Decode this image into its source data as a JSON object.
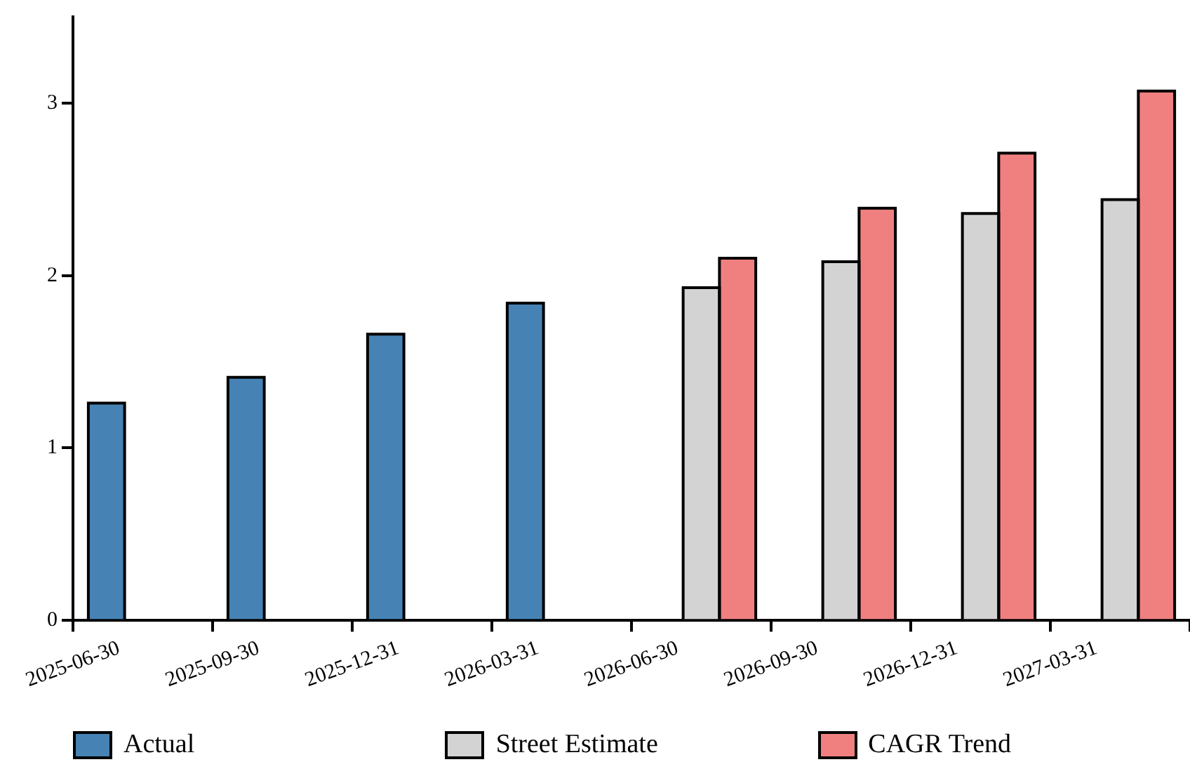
{
  "chart_data": {
    "type": "bar",
    "categories": [
      "2025-06-30",
      "2025-09-30",
      "2025-12-31",
      "2026-03-31",
      "2026-06-30",
      "2026-09-30",
      "2026-12-31",
      "2027-03-31"
    ],
    "series": [
      {
        "name": "Actual",
        "color": "#4682b4",
        "values": [
          1.26,
          1.41,
          1.66,
          1.84,
          null,
          null,
          null,
          null
        ]
      },
      {
        "name": "Street Estimate",
        "color": "#d3d3d3",
        "values": [
          null,
          null,
          null,
          null,
          1.93,
          2.08,
          2.36,
          2.44
        ]
      },
      {
        "name": "CAGR Trend",
        "color": "#f08080",
        "values": [
          null,
          null,
          null,
          null,
          2.1,
          2.39,
          2.71,
          3.07
        ]
      }
    ],
    "ylim": [
      0,
      3.5
    ],
    "yticks": [
      0,
      1,
      2,
      3
    ],
    "grid": false,
    "legend": "bottom"
  }
}
